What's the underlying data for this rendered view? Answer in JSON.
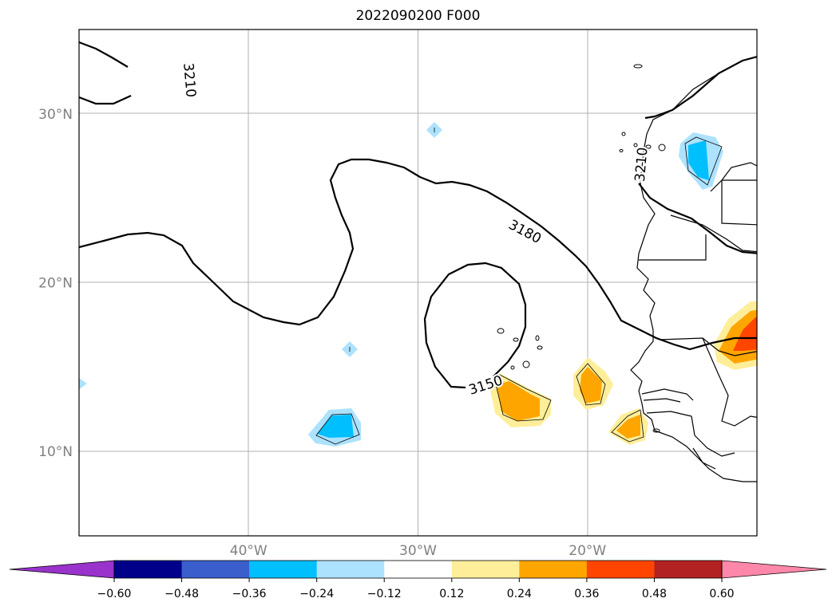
{
  "title": "2022090200 F000",
  "lat_ticks": [
    {
      "label": "30°N",
      "value": 30
    },
    {
      "label": "20°N",
      "value": 20
    },
    {
      "label": "10°N",
      "value": 10
    }
  ],
  "lon_ticks": [
    {
      "label": "40°W",
      "value": -40
    },
    {
      "label": "30°W",
      "value": -30
    },
    {
      "label": "20°W",
      "value": -20
    }
  ],
  "extent": {
    "lon_min": -50,
    "lon_max": -10,
    "lat_min": 5,
    "lat_max": 35
  },
  "contour_labels": [
    {
      "text": "3210",
      "lon": -43.5,
      "lat": 32.0,
      "rotate": 85
    },
    {
      "text": "3180",
      "lon": -23.7,
      "lat": 23.0,
      "rotate": 28
    },
    {
      "text": "3150",
      "lon": -26.0,
      "lat": 13.9,
      "rotate": -18
    },
    {
      "text": "3210",
      "lon": -16.8,
      "lat": 27.0,
      "rotate": -85
    }
  ],
  "colorbar": {
    "colors": [
      "#9933cc",
      "#00008b",
      "#3a5fcd",
      "#00bfff",
      "#ade2ff",
      "#ffffff",
      "#ffee99",
      "#ffa500",
      "#ff4500",
      "#b22222",
      "#ff88aa"
    ],
    "labels": [
      "−0.60",
      "−0.48",
      "−0.36",
      "−0.24",
      "−0.12",
      "0.12",
      "0.24",
      "0.36",
      "0.48",
      "0.60"
    ]
  }
}
